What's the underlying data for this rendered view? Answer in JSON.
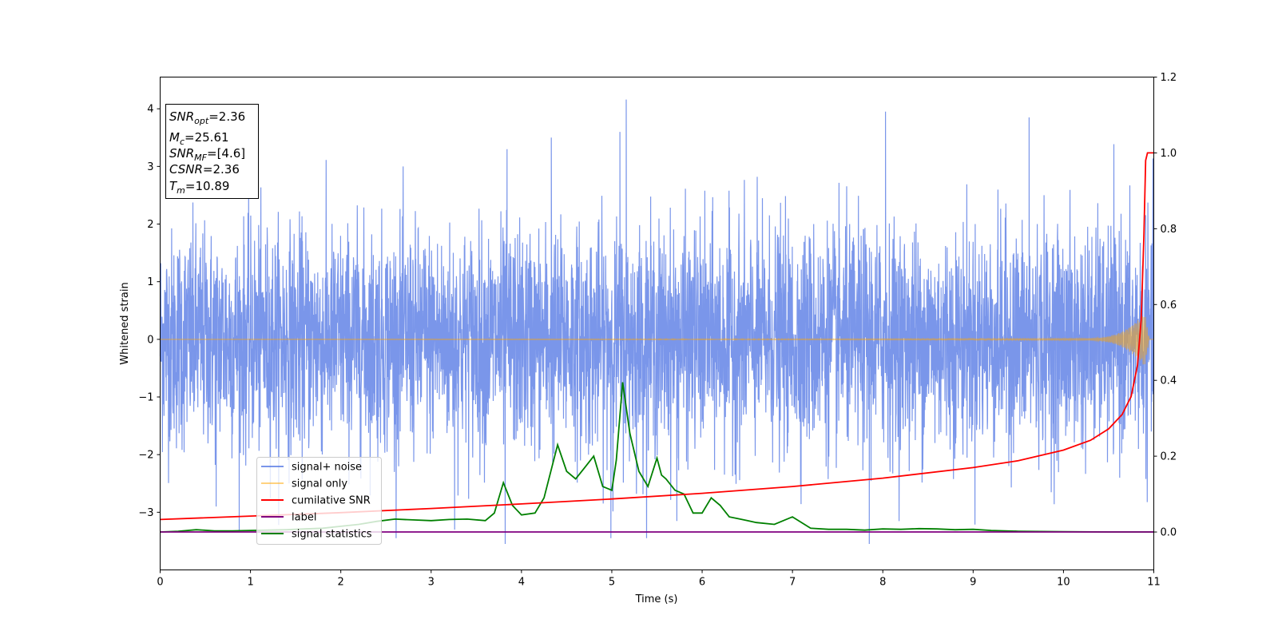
{
  "chart_data": {
    "type": "line",
    "xlabel": "Time (s)",
    "ylabel": "Whitened strain",
    "xlim": [
      0,
      11
    ],
    "ylim": [
      -4.0,
      4.55
    ],
    "y2lim": [
      -0.1,
      1.2
    ],
    "x_ticks": [
      "0",
      "1",
      "2",
      "3",
      "4",
      "5",
      "6",
      "7",
      "8",
      "9",
      "10",
      "11"
    ],
    "y_ticks": [
      "4",
      "3",
      "2",
      "1",
      "0",
      "−1",
      "−2",
      "−3"
    ],
    "y_tick_values": [
      4,
      3,
      2,
      1,
      0,
      -1,
      -2,
      -3
    ],
    "y2_ticks": [
      "1.2",
      "1.0",
      "0.8",
      "0.6",
      "0.4",
      "0.2",
      "0.0"
    ],
    "y2_tick_values": [
      1.2,
      1.0,
      0.8,
      0.6,
      0.4,
      0.2,
      0.0
    ],
    "grid": false,
    "legend_position": "bottom-left",
    "series": [
      {
        "name": "signal+ noise",
        "color": "#4169e1",
        "axis": "left",
        "style": "dense whitened noise, amplitude about 2, spikes to 4.16 near t=5.16"
      },
      {
        "name": "signal only",
        "color": "#ffa500",
        "axis": "left",
        "style": "flat at 0, chirp growing to about 0.45 near t=10.9"
      },
      {
        "name": "cumilative SNR",
        "color": "#ff0000",
        "axis": "right",
        "x": [
          0,
          1,
          2,
          3,
          4,
          5,
          6,
          7,
          8,
          9,
          9.5,
          10,
          10.3,
          10.5,
          10.65,
          10.75,
          10.82,
          10.86,
          10.89,
          10.91,
          10.93,
          11
        ],
        "y": [
          0.033,
          0.042,
          0.051,
          0.062,
          0.074,
          0.087,
          0.102,
          0.12,
          0.142,
          0.17,
          0.188,
          0.216,
          0.242,
          0.272,
          0.31,
          0.358,
          0.44,
          0.56,
          0.78,
          0.98,
          1.0,
          1.0
        ]
      },
      {
        "name": "label",
        "color": "#800080",
        "axis": "right",
        "x": [
          0,
          11
        ],
        "y": [
          0.0,
          0.0
        ]
      },
      {
        "name": "signal statistics",
        "color": "#008000",
        "axis": "right",
        "x": [
          0,
          0.2,
          0.4,
          0.6,
          0.8,
          1.0,
          1.2,
          1.4,
          1.6,
          1.8,
          2.0,
          2.2,
          2.4,
          2.6,
          2.8,
          3.0,
          3.2,
          3.4,
          3.6,
          3.7,
          3.8,
          3.9,
          4.0,
          4.15,
          4.25,
          4.4,
          4.5,
          4.6,
          4.7,
          4.8,
          4.9,
          5.0,
          5.05,
          5.12,
          5.2,
          5.3,
          5.4,
          5.5,
          5.55,
          5.6,
          5.7,
          5.8,
          5.9,
          6.0,
          6.1,
          6.2,
          6.3,
          6.4,
          6.5,
          6.6,
          6.8,
          7.0,
          7.2,
          7.4,
          7.6,
          7.8,
          8.0,
          8.2,
          8.4,
          8.6,
          8.8,
          9.0,
          9.2,
          9.5,
          10.0,
          10.5,
          11.0
        ],
        "y": [
          0.0,
          0.002,
          0.006,
          0.003,
          0.003,
          0.004,
          0.005,
          0.006,
          0.008,
          0.01,
          0.015,
          0.02,
          0.028,
          0.034,
          0.032,
          0.03,
          0.033,
          0.034,
          0.03,
          0.05,
          0.13,
          0.07,
          0.045,
          0.05,
          0.09,
          0.23,
          0.16,
          0.14,
          0.17,
          0.2,
          0.12,
          0.11,
          0.19,
          0.395,
          0.26,
          0.16,
          0.12,
          0.195,
          0.15,
          0.14,
          0.11,
          0.1,
          0.05,
          0.05,
          0.09,
          0.07,
          0.04,
          0.035,
          0.03,
          0.025,
          0.02,
          0.04,
          0.01,
          0.007,
          0.007,
          0.005,
          0.008,
          0.007,
          0.009,
          0.008,
          0.006,
          0.007,
          0.004,
          0.002,
          0.001,
          0.0,
          0.0
        ]
      }
    ]
  },
  "annotation": {
    "snr_opt": {
      "sym": "SNR",
      "sub": "opt",
      "value": "=2.36"
    },
    "mc": {
      "sym": "M",
      "sub": "c",
      "value": "=25.61"
    },
    "snr_mf": {
      "sym": "SNR",
      "sub": "MF",
      "value": "=[4.6]"
    },
    "csnr": {
      "sym": "CSNR",
      "value": "=2.36"
    },
    "tm": {
      "sym": "T",
      "sub": "m",
      "value": "=10.89"
    }
  }
}
